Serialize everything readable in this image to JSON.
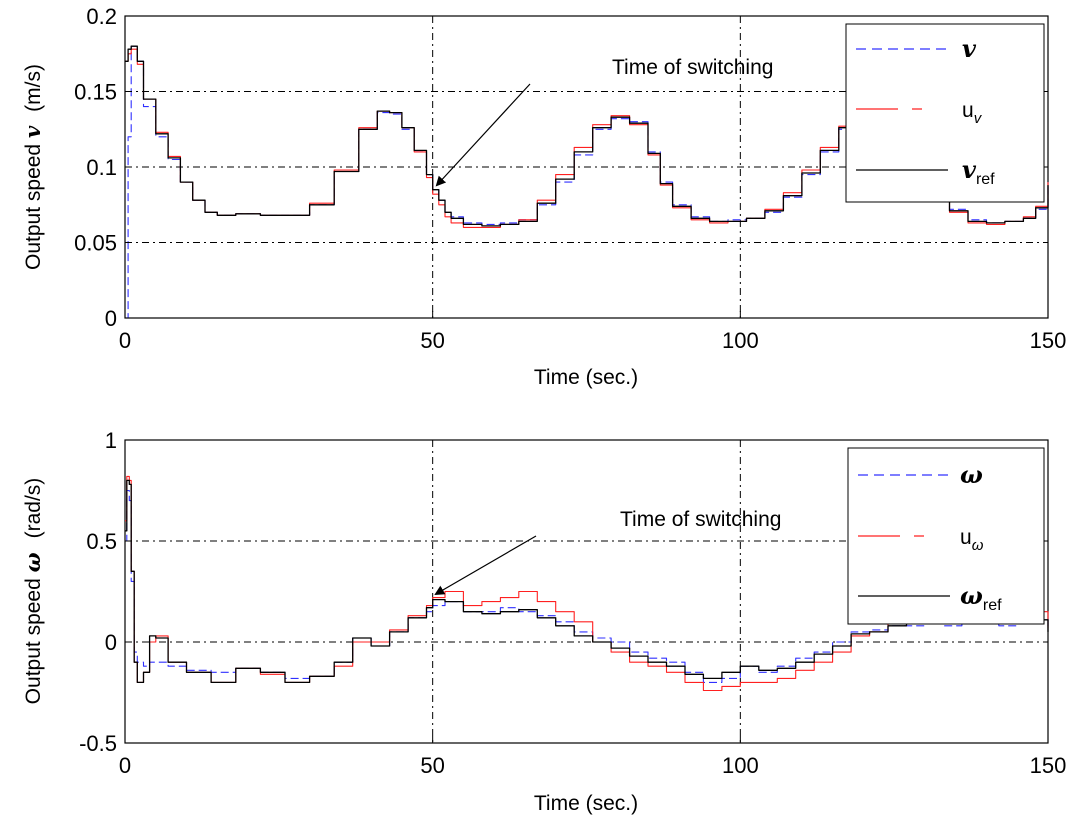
{
  "chart_data": [
    {
      "type": "line",
      "xlabel": "Time (sec.)",
      "ylabel_prefix": "Output speed ",
      "ylabel_symbol": "v",
      "ylabel_unit": "(m/s)",
      "xlim": [
        0,
        150
      ],
      "ylim": [
        0,
        0.2
      ],
      "x_ticks": [
        0,
        50,
        100,
        150
      ],
      "x_tick_labels": [
        "0",
        "50",
        "100",
        "150"
      ],
      "y_ticks": [
        0,
        0.05,
        0.1,
        0.15,
        0.2
      ],
      "y_tick_labels": [
        "0",
        "0.05",
        "0.1",
        "0.15",
        "0.2"
      ],
      "grid": true,
      "legend_position": "top-right",
      "annotation": {
        "text": "Time of  switching",
        "arrow_to": [
          50,
          0.085
        ]
      },
      "series": [
        {
          "name": "v",
          "name_sub": "",
          "color": "#3030ff",
          "dash": "dashed",
          "x": [
            0,
            0.5,
            1,
            2,
            3,
            5,
            7,
            9,
            11,
            13,
            15,
            18,
            22,
            26,
            30,
            34,
            38,
            41,
            43,
            45,
            47,
            49,
            50,
            51,
            52,
            53,
            55,
            58,
            61,
            64,
            67,
            70,
            73,
            76,
            79,
            82,
            85,
            87,
            89,
            92,
            95,
            98,
            101,
            104,
            107,
            110,
            113,
            116,
            119,
            122,
            125,
            128,
            131,
            134,
            137,
            140,
            143,
            146,
            148,
            150
          ],
          "y": [
            0.0,
            0.12,
            0.18,
            0.17,
            0.14,
            0.12,
            0.105,
            0.09,
            0.078,
            0.07,
            0.068,
            0.069,
            0.068,
            0.068,
            0.075,
            0.097,
            0.125,
            0.136,
            0.135,
            0.125,
            0.11,
            0.095,
            0.085,
            0.078,
            0.07,
            0.067,
            0.063,
            0.062,
            0.063,
            0.065,
            0.075,
            0.09,
            0.108,
            0.125,
            0.132,
            0.13,
            0.11,
            0.09,
            0.075,
            0.067,
            0.064,
            0.065,
            0.066,
            0.07,
            0.08,
            0.095,
            0.11,
            0.125,
            0.133,
            0.13,
            0.12,
            0.1,
            0.085,
            0.072,
            0.065,
            0.063,
            0.064,
            0.066,
            0.072,
            0.09
          ]
        },
        {
          "name": "u",
          "name_sub": "v",
          "color": "#ff2020",
          "dash": "solid",
          "x": [
            0,
            0.5,
            1,
            2,
            3,
            5,
            7,
            9,
            11,
            13,
            15,
            18,
            22,
            26,
            30,
            34,
            38,
            41,
            43,
            45,
            47,
            49,
            50,
            51,
            52,
            53,
            55,
            58,
            61,
            64,
            67,
            70,
            73,
            76,
            79,
            82,
            85,
            87,
            89,
            92,
            95,
            98,
            101,
            104,
            107,
            110,
            113,
            116,
            119,
            122,
            125,
            128,
            131,
            134,
            137,
            140,
            143,
            146,
            148,
            150
          ],
          "y": [
            0.17,
            0.175,
            0.178,
            0.168,
            0.145,
            0.123,
            0.107,
            0.09,
            0.078,
            0.07,
            0.068,
            0.069,
            0.068,
            0.068,
            0.076,
            0.098,
            0.126,
            0.137,
            0.136,
            0.126,
            0.11,
            0.093,
            0.082,
            0.075,
            0.067,
            0.063,
            0.06,
            0.06,
            0.062,
            0.065,
            0.078,
            0.095,
            0.113,
            0.128,
            0.134,
            0.128,
            0.108,
            0.088,
            0.073,
            0.065,
            0.063,
            0.064,
            0.066,
            0.072,
            0.083,
            0.098,
            0.113,
            0.127,
            0.134,
            0.129,
            0.118,
            0.098,
            0.083,
            0.07,
            0.063,
            0.062,
            0.064,
            0.067,
            0.074,
            0.09
          ]
        },
        {
          "name": "v",
          "name_sub": "ref",
          "color": "#000000",
          "dash": "solid",
          "x": [
            0,
            0.5,
            1,
            2,
            3,
            5,
            7,
            9,
            11,
            13,
            15,
            18,
            22,
            26,
            30,
            34,
            38,
            41,
            43,
            45,
            47,
            49,
            50,
            51,
            52,
            53,
            55,
            58,
            61,
            64,
            67,
            70,
            73,
            76,
            79,
            82,
            85,
            87,
            89,
            92,
            95,
            98,
            101,
            104,
            107,
            110,
            113,
            116,
            119,
            122,
            125,
            128,
            131,
            134,
            137,
            140,
            143,
            146,
            148,
            150
          ],
          "y": [
            0.17,
            0.178,
            0.18,
            0.17,
            0.145,
            0.122,
            0.106,
            0.09,
            0.078,
            0.07,
            0.068,
            0.069,
            0.068,
            0.068,
            0.075,
            0.097,
            0.125,
            0.137,
            0.136,
            0.126,
            0.111,
            0.095,
            0.085,
            0.078,
            0.07,
            0.066,
            0.062,
            0.061,
            0.062,
            0.064,
            0.076,
            0.092,
            0.11,
            0.126,
            0.133,
            0.129,
            0.109,
            0.089,
            0.074,
            0.066,
            0.064,
            0.064,
            0.066,
            0.071,
            0.081,
            0.096,
            0.111,
            0.126,
            0.133,
            0.13,
            0.119,
            0.099,
            0.084,
            0.071,
            0.064,
            0.063,
            0.064,
            0.066,
            0.073,
            0.088
          ]
        }
      ]
    },
    {
      "type": "line",
      "xlabel": "Time (sec.)",
      "ylabel_prefix": "Output speed ",
      "ylabel_symbol": "ω",
      "ylabel_unit": "(rad/s)",
      "xlim": [
        0,
        150
      ],
      "ylim": [
        -0.5,
        1
      ],
      "x_ticks": [
        0,
        50,
        100,
        150
      ],
      "x_tick_labels": [
        "0",
        "50",
        "100",
        "150"
      ],
      "y_ticks": [
        -0.5,
        0,
        0.5,
        1
      ],
      "y_tick_labels": [
        "-0.5",
        "0",
        "0.5",
        "1"
      ],
      "grid": true,
      "legend_position": "top-right",
      "annotation": {
        "text": "Time of  switching",
        "arrow_to": [
          50,
          0.22
        ]
      },
      "series": [
        {
          "name": "ω",
          "name_sub": "",
          "color": "#3030ff",
          "dash": "dashed",
          "x": [
            0,
            0.3,
            0.7,
            1,
            1.5,
            2,
            3,
            4,
            5,
            7,
            10,
            14,
            18,
            22,
            26,
            30,
            34,
            37,
            40,
            43,
            46,
            49,
            50,
            52,
            55,
            58,
            61,
            64,
            67,
            70,
            73,
            76,
            79,
            82,
            85,
            88,
            91,
            94,
            97,
            100,
            103,
            106,
            109,
            112,
            115,
            118,
            121,
            124,
            127,
            130,
            133,
            136,
            139,
            142,
            145,
            148,
            150
          ],
          "y": [
            0.5,
            0.75,
            0.7,
            0.3,
            -0.05,
            -0.1,
            -0.12,
            -0.1,
            -0.1,
            -0.12,
            -0.14,
            -0.15,
            -0.13,
            -0.15,
            -0.18,
            -0.17,
            -0.1,
            0.02,
            -0.02,
            0.05,
            0.12,
            0.15,
            0.18,
            0.2,
            0.15,
            0.15,
            0.17,
            0.15,
            0.13,
            0.1,
            0.05,
            0.02,
            0.0,
            -0.05,
            -0.08,
            -0.1,
            -0.15,
            -0.2,
            -0.18,
            -0.12,
            -0.15,
            -0.12,
            -0.08,
            -0.05,
            0.0,
            0.05,
            0.06,
            0.08,
            0.08,
            0.1,
            0.08,
            0.1,
            0.09,
            0.08,
            0.12,
            0.12,
            0.06
          ]
        },
        {
          "name": "u",
          "name_sub": "ω",
          "color": "#ff2020",
          "dash": "solid",
          "x": [
            0,
            0.3,
            0.7,
            1,
            1.5,
            2,
            3,
            4,
            5,
            7,
            10,
            14,
            18,
            22,
            26,
            30,
            34,
            37,
            40,
            43,
            46,
            49,
            50,
            52,
            55,
            58,
            61,
            64,
            67,
            70,
            73,
            76,
            79,
            82,
            85,
            88,
            91,
            94,
            97,
            100,
            103,
            106,
            109,
            112,
            115,
            118,
            121,
            124,
            127,
            130,
            133,
            136,
            139,
            142,
            145,
            148,
            150
          ],
          "y": [
            0.6,
            0.82,
            0.8,
            0.35,
            -0.1,
            -0.2,
            -0.15,
            0.0,
            0.03,
            -0.1,
            -0.15,
            -0.2,
            -0.13,
            -0.16,
            -0.2,
            -0.17,
            -0.12,
            0.0,
            0.0,
            0.06,
            0.13,
            0.18,
            0.22,
            0.25,
            0.18,
            0.2,
            0.22,
            0.25,
            0.2,
            0.15,
            0.1,
            0.0,
            -0.05,
            -0.1,
            -0.12,
            -0.15,
            -0.2,
            -0.24,
            -0.22,
            -0.2,
            -0.2,
            -0.18,
            -0.14,
            -0.1,
            -0.05,
            0.03,
            0.05,
            0.1,
            0.1,
            0.12,
            0.1,
            0.12,
            0.12,
            0.1,
            0.16,
            0.15,
            0.07
          ]
        },
        {
          "name": "ω",
          "name_sub": "ref",
          "color": "#000000",
          "dash": "solid",
          "x": [
            0,
            0.3,
            0.7,
            1,
            1.5,
            2,
            3,
            4,
            5,
            7,
            10,
            14,
            18,
            22,
            26,
            30,
            34,
            37,
            40,
            43,
            46,
            49,
            50,
            52,
            55,
            58,
            61,
            64,
            67,
            70,
            73,
            76,
            79,
            82,
            85,
            88,
            91,
            94,
            97,
            100,
            103,
            106,
            109,
            112,
            115,
            118,
            121,
            124,
            127,
            130,
            133,
            136,
            139,
            142,
            145,
            148,
            150
          ],
          "y": [
            0.55,
            0.8,
            0.78,
            0.35,
            -0.1,
            -0.2,
            -0.15,
            0.03,
            0.02,
            -0.1,
            -0.15,
            -0.2,
            -0.13,
            -0.15,
            -0.2,
            -0.17,
            -0.1,
            0.02,
            -0.02,
            0.05,
            0.12,
            0.17,
            0.21,
            0.2,
            0.15,
            0.14,
            0.15,
            0.16,
            0.12,
            0.08,
            0.03,
            0.0,
            -0.03,
            -0.07,
            -0.1,
            -0.12,
            -0.16,
            -0.18,
            -0.15,
            -0.12,
            -0.14,
            -0.13,
            -0.1,
            -0.06,
            -0.02,
            0.04,
            0.05,
            0.08,
            0.09,
            0.1,
            0.09,
            0.1,
            0.1,
            0.09,
            0.12,
            0.11,
            0.05
          ]
        }
      ]
    }
  ]
}
